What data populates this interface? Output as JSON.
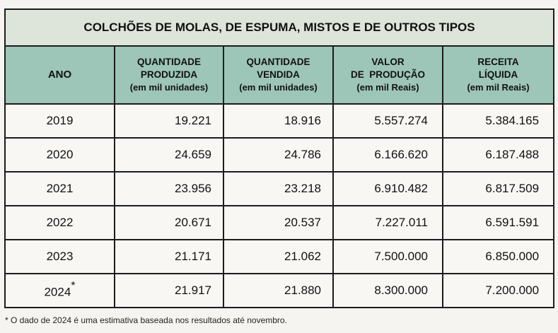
{
  "title": "COLCHÕES DE MOLAS, DE ESPUMA, MISTOS E DE OUTROS TIPOS",
  "headers": [
    {
      "l1": "ANO"
    },
    {
      "l1": "QUANTIDADE",
      "l2": "PRODUZIDA",
      "unit": "(em mil unidades)"
    },
    {
      "l1": "QUANTIDADE",
      "l2": "VENDIDA",
      "unit": "(em mil unidades)"
    },
    {
      "l1": "VALOR",
      "l2": "DE  PRODUÇÃO",
      "unit": "(em mil Reais)"
    },
    {
      "l1": "RECEITA",
      "l2": "LÍQUIDA",
      "unit": "(em mil Reais)"
    }
  ],
  "rows": [
    [
      "2019",
      "19.221",
      "18.916",
      "5.557.274",
      "5.384.165"
    ],
    [
      "2020",
      "24.659",
      "24.786",
      "6.166.620",
      "6.187.488"
    ],
    [
      "2021",
      "23.956",
      "23.218",
      "6.910.482",
      "6.817.509"
    ],
    [
      "2022",
      "20.671",
      "20.537",
      "7.227.011",
      "6.591.591"
    ],
    [
      "2023",
      "21.171",
      "21.062",
      "7.500.000",
      "6.850.000"
    ],
    [
      "2024",
      "21.917",
      "21.880",
      "8.300.000",
      "7.200.000"
    ]
  ],
  "asterisk": "*",
  "footnote": "* O dado de 2024 é uma estimativa baseada nos resultados até novembro."
}
